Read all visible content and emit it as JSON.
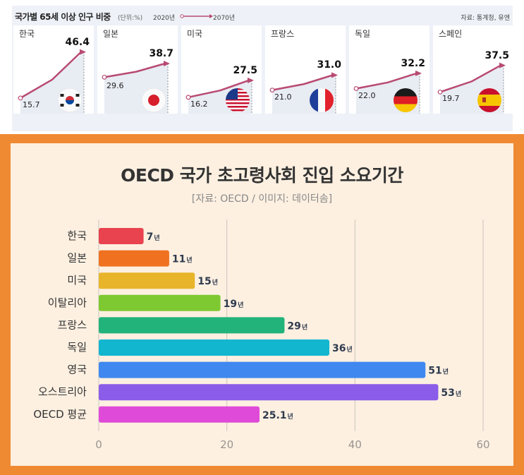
{
  "top": {
    "title": "국가별 65세 이상 인구 비중",
    "unit": "(단위:%)",
    "legend_start": "2020년",
    "legend_end": "2070년",
    "source": "자료: 통계청, 유엔",
    "accent": "#b84a72"
  },
  "bottom": {
    "background": "#f08a32",
    "panel": "#fdf0e1"
  },
  "chart_data": [
    {
      "type": "line",
      "title": "국가별 65세 이상 인구 비중",
      "unit": "%",
      "x": [
        "2020년",
        "2070년"
      ],
      "series": [
        {
          "name": "한국",
          "flag": "korea-flag-icon",
          "values": [
            15.7,
            46.4
          ],
          "labels": [
            "15.7",
            "46.4"
          ]
        },
        {
          "name": "일본",
          "flag": "japan-flag-icon",
          "values": [
            29.6,
            38.7
          ],
          "labels": [
            "29.6",
            "38.7"
          ]
        },
        {
          "name": "미국",
          "flag": "usa-flag-icon",
          "values": [
            16.2,
            27.5
          ],
          "labels": [
            "16.2",
            "27.5"
          ]
        },
        {
          "name": "프랑스",
          "flag": "france-flag-icon",
          "values": [
            21.0,
            31.0
          ],
          "labels": [
            "21.0",
            "31.0"
          ]
        },
        {
          "name": "독일",
          "flag": "germany-flag-icon",
          "values": [
            22.0,
            32.2
          ],
          "labels": [
            "22.0",
            "32.2"
          ]
        },
        {
          "name": "스페인",
          "flag": "spain-flag-icon",
          "values": [
            19.7,
            37.5
          ],
          "labels": [
            "19.7",
            "37.5"
          ]
        }
      ],
      "ylim": [
        10,
        50
      ]
    },
    {
      "type": "bar",
      "orientation": "horizontal",
      "title": "OECD 국가 초고령사회 진입 소요기간",
      "subtitle": "[자료: OECD / 이미지: 데이터솜]",
      "categories": [
        "한국",
        "일본",
        "미국",
        "이탈리아",
        "프랑스",
        "독일",
        "영국",
        "오스트리아",
        "OECD 평균"
      ],
      "values": [
        7,
        11,
        15,
        19,
        29,
        36,
        51,
        53,
        25.1
      ],
      "value_labels": [
        "7",
        "11",
        "15",
        "19",
        "29",
        "36",
        "51",
        "53",
        "25.1"
      ],
      "unit_suffix": "년",
      "colors": [
        "#e8434f",
        "#f07220",
        "#e8b52a",
        "#7ec931",
        "#22b37a",
        "#13b6cf",
        "#3f88f0",
        "#8a5ce8",
        "#e04ad8"
      ],
      "xlim": [
        0,
        60
      ],
      "xticks": [
        "0",
        "20",
        "40",
        "60"
      ],
      "tick_values": [
        0,
        20,
        40,
        60
      ],
      "grid": true
    }
  ]
}
